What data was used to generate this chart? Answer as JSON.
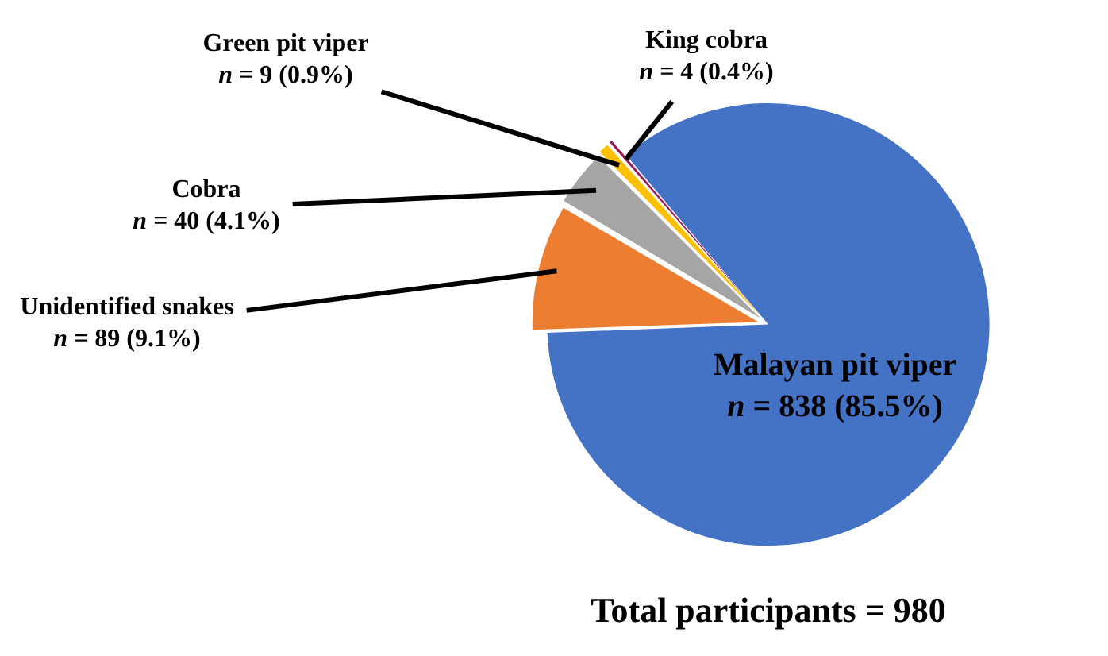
{
  "chart_data": {
    "type": "pie",
    "title": "Total participants = 980",
    "categories": [
      "Malayan pit viper",
      "Unidentified snakes",
      "Cobra",
      "Green pit viper",
      "King cobra"
    ],
    "values": [
      838,
      89,
      40,
      9,
      4
    ],
    "colors": [
      "#4472c4",
      "#ed7d31",
      "#a5a5a5",
      "#ffc000",
      "#9b1d54"
    ],
    "value_labels": [
      "n = 838 (85.5%)",
      "n = 89 (9.1%)",
      "n = 40 (4.1%)",
      "n = 9 (0.9%)",
      "n = 4 (0.4%)"
    ]
  }
}
